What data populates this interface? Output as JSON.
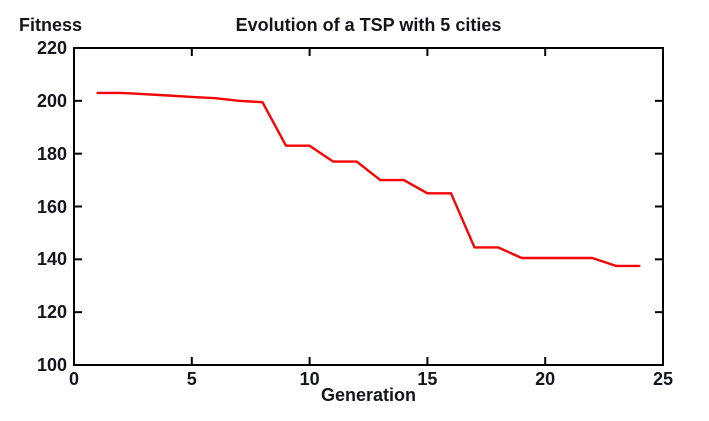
{
  "figure": {
    "title": "Evolution of a TSP with 5 cities",
    "y_axis_label": "Fitness",
    "x_axis_label": "Generation"
  },
  "colors": {
    "line": "#f50505",
    "axis": "#000000",
    "text": "#15151d",
    "background": "#ffffff"
  },
  "chart_data": {
    "type": "line",
    "title": "Evolution of a TSP with 5 cities",
    "xlabel": "Generation",
    "ylabel": "Fitness",
    "xlim": [
      0,
      25
    ],
    "ylim": [
      100,
      220
    ],
    "x_ticks": [
      0,
      5,
      10,
      15,
      20,
      25
    ],
    "y_ticks": [
      100,
      120,
      140,
      160,
      180,
      200,
      220
    ],
    "grid": false,
    "legend": "none",
    "series": [
      {
        "name": "fitness",
        "color": "#f50505",
        "x": [
          1,
          2,
          3,
          4,
          5,
          6,
          7,
          8,
          9,
          10,
          11,
          12,
          13,
          14,
          15,
          16,
          17,
          18,
          19,
          20,
          21,
          22,
          23,
          24
        ],
        "y": [
          203,
          203,
          202.5,
          202,
          201.5,
          201,
          200,
          199.5,
          183,
          183,
          177,
          177,
          170,
          170,
          165,
          165,
          144.5,
          144.5,
          140.5,
          140.5,
          140.5,
          140.5,
          137.5,
          137.5
        ]
      }
    ]
  }
}
